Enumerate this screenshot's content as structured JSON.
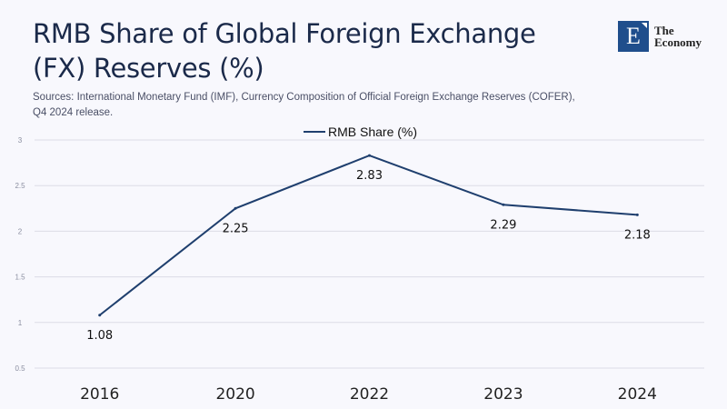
{
  "header": {
    "title": "RMB Share of Global Foreign Exchange (FX) Reserves (%)",
    "sources": "Sources:  International Monetary Fund (IMF), Currency Composition of Official Foreign Exchange Reserves (COFER), Q4 2024 release."
  },
  "logo": {
    "letter": "E",
    "line1": "The",
    "line2": "Economy",
    "color": "#1f4e8c"
  },
  "chart_data": {
    "type": "line",
    "categories": [
      "2016",
      "2020",
      "2022",
      "2023",
      "2024"
    ],
    "series": [
      {
        "name": "RMB Share (%)",
        "values": [
          1.08,
          2.25,
          2.83,
          2.29,
          2.18
        ],
        "color": "#1f3f6e"
      }
    ],
    "data_labels": [
      "1.08",
      "2.25",
      "2.83",
      "2.29",
      "2.18"
    ],
    "yticks": [
      "0.5",
      "1",
      "1.5",
      "2",
      "2.5",
      "3"
    ],
    "ylim": [
      0.5,
      3
    ],
    "grid": true,
    "legend": "top-center"
  }
}
